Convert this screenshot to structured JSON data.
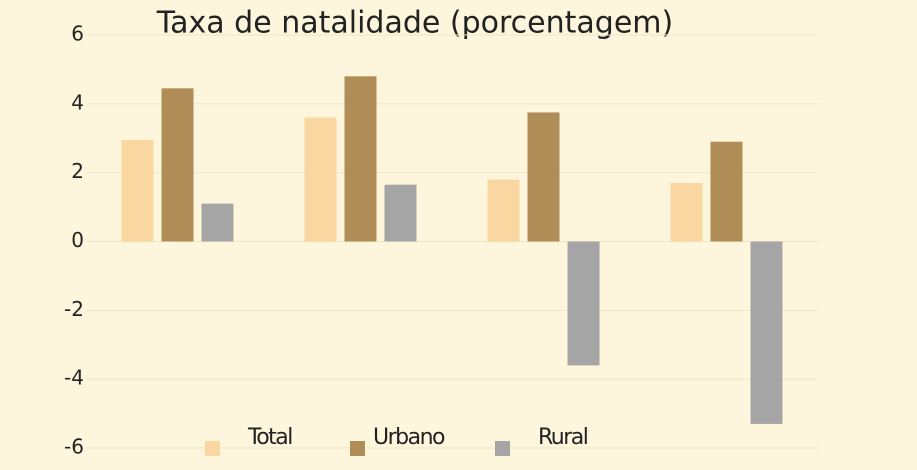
{
  "chart_data": {
    "type": "bar",
    "title": "Taxa de natalidade (porcentagem)",
    "categories": [
      null,
      null,
      null,
      null
    ],
    "series": [
      {
        "name": "Total",
        "color": "#fad7a0",
        "values": [
          2.95,
          3.6,
          1.8,
          1.7
        ]
      },
      {
        "name": "Urbano",
        "color": "#b08d57",
        "values": [
          4.45,
          4.8,
          3.75,
          2.9
        ]
      },
      {
        "name": "Rural",
        "color": "#a5a5a5",
        "values": [
          1.1,
          1.65,
          -3.6,
          -5.3
        ]
      }
    ],
    "ylim": [
      -6,
      6
    ],
    "yticks": [
      -6,
      -4,
      -2,
      0,
      2,
      4,
      6
    ],
    "grid": true,
    "legend": "bottom"
  }
}
